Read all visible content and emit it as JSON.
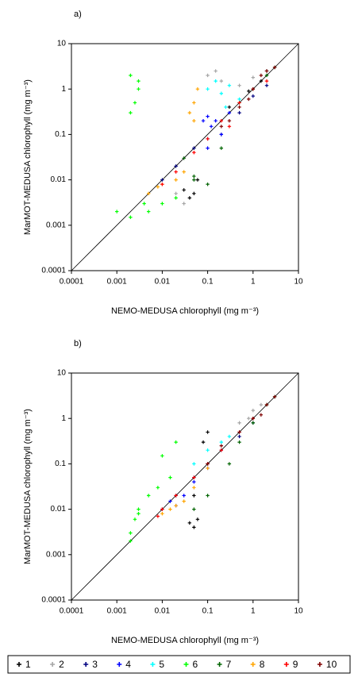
{
  "chart_data": [
    {
      "type": "scatter",
      "panel_label": "a)",
      "xlabel": "NEMO-MEDUSA chlorophyll (mg m⁻³)",
      "ylabel": "MarMOT-MEDUSA chlorophyll (mg m⁻³)",
      "log_scale": true,
      "xlim": [
        0.0001,
        10
      ],
      "ylim": [
        0.0001,
        10
      ],
      "xticks": [
        0.0001,
        0.001,
        0.01,
        0.1,
        1,
        10
      ],
      "yticks": [
        0.0001,
        0.001,
        0.01,
        0.1,
        1,
        10
      ],
      "series": [
        {
          "name": "1",
          "color": "#000000",
          "x": [
            0.03,
            0.04,
            0.05,
            0.06,
            0.3,
            0.8,
            1.5,
            2
          ],
          "values": [
            0.006,
            0.004,
            0.005,
            0.01,
            0.4,
            0.9,
            1.5,
            2.5
          ]
        },
        {
          "name": "2",
          "color": "#a6a6a6",
          "x": [
            0.02,
            0.03,
            0.1,
            0.15,
            0.2,
            0.5,
            1
          ],
          "values": [
            0.005,
            0.003,
            2,
            2.5,
            1.5,
            1.2,
            1.8
          ]
        },
        {
          "name": "3",
          "color": "#000080",
          "x": [
            0.01,
            0.02,
            0.05,
            0.1,
            0.2,
            0.5,
            1,
            2
          ],
          "values": [
            0.01,
            0.02,
            0.05,
            0.08,
            0.1,
            0.3,
            0.7,
            1.2
          ]
        },
        {
          "name": "4",
          "color": "#0000ff",
          "x": [
            0.08,
            0.1,
            0.12,
            0.15,
            0.1,
            0.2,
            0.3
          ],
          "values": [
            0.2,
            0.25,
            0.15,
            0.2,
            0.05,
            0.1,
            0.3
          ]
        },
        {
          "name": "5",
          "color": "#00ffff",
          "x": [
            0.1,
            0.15,
            0.2,
            0.3,
            0.25,
            0.5
          ],
          "values": [
            1,
            1.5,
            0.8,
            1.2,
            0.4,
            0.6
          ]
        },
        {
          "name": "6",
          "color": "#00ff00",
          "x": [
            0.002,
            0.003,
            0.0025,
            0.002,
            0.003,
            0.005,
            0.01,
            0.02,
            0.001,
            0.002,
            0.004
          ],
          "values": [
            2,
            1,
            0.5,
            0.3,
            1.5,
            0.002,
            0.003,
            0.004,
            0.002,
            0.0015,
            0.003
          ]
        },
        {
          "name": "7",
          "color": "#006400",
          "x": [
            0.05,
            0.1,
            0.03,
            0.5,
            1,
            2,
            3,
            0.2,
            0.05
          ],
          "values": [
            0.01,
            0.008,
            0.03,
            0.5,
            1,
            2,
            3,
            0.05,
            0.012
          ]
        },
        {
          "name": "8",
          "color": "#ffa500",
          "x": [
            0.005,
            0.008,
            0.01,
            0.02,
            0.03,
            0.05,
            0.06,
            0.04,
            0.05
          ],
          "values": [
            0.005,
            0.007,
            0.008,
            0.01,
            0.015,
            0.5,
            1,
            0.3,
            0.2
          ]
        },
        {
          "name": "9",
          "color": "#ff0000",
          "x": [
            0.01,
            0.02,
            0.05,
            0.1,
            0.2,
            0.5,
            1,
            2,
            0.3
          ],
          "values": [
            0.008,
            0.015,
            0.04,
            0.08,
            0.2,
            0.5,
            1,
            1.5,
            0.15
          ]
        },
        {
          "name": "10",
          "color": "#800000",
          "x": [
            0.2,
            0.5,
            1,
            1.5,
            2,
            3,
            0.8,
            0.3
          ],
          "values": [
            0.15,
            0.4,
            1,
            2,
            2.5,
            3,
            0.6,
            0.2
          ]
        }
      ]
    },
    {
      "type": "scatter",
      "panel_label": "b)",
      "xlabel": "NEMO-MEDUSA chlorophyll (mg m⁻³)",
      "ylabel": "MarMOT-MEDUSA chlorophyll (mg m⁻³)",
      "log_scale": true,
      "xlim": [
        0.0001,
        10
      ],
      "ylim": [
        0.0001,
        10
      ],
      "xticks": [
        0.0001,
        0.001,
        0.01,
        0.1,
        1,
        10
      ],
      "yticks": [
        0.0001,
        0.001,
        0.01,
        0.1,
        1,
        10
      ],
      "series": [
        {
          "name": "1",
          "color": "#000000",
          "x": [
            0.04,
            0.05,
            0.06,
            0.05,
            0.1,
            0.08
          ],
          "values": [
            0.005,
            0.004,
            0.006,
            0.02,
            0.5,
            0.3
          ]
        },
        {
          "name": "2",
          "color": "#a6a6a6",
          "x": [
            0.5,
            0.8,
            1,
            1.5
          ],
          "values": [
            0.8,
            1,
            1.5,
            2
          ]
        },
        {
          "name": "3",
          "color": "#000080",
          "x": [
            0.01,
            0.02,
            0.05,
            0.1,
            0.2,
            0.5,
            1
          ],
          "values": [
            0.01,
            0.02,
            0.05,
            0.1,
            0.2,
            0.4,
            0.8
          ]
        },
        {
          "name": "4",
          "color": "#0000ff",
          "x": [
            0.015,
            0.02,
            0.03,
            0.05,
            0.1
          ],
          "values": [
            0.015,
            0.012,
            0.02,
            0.04,
            0.08
          ]
        },
        {
          "name": "5",
          "color": "#00ffff",
          "x": [
            0.05,
            0.1,
            0.2,
            0.3
          ],
          "values": [
            0.1,
            0.2,
            0.3,
            0.4
          ]
        },
        {
          "name": "6",
          "color": "#00ff00",
          "x": [
            0.002,
            0.0025,
            0.003,
            0.005,
            0.008,
            0.01,
            0.02,
            0.015,
            0.003,
            0.002
          ],
          "values": [
            0.003,
            0.006,
            0.01,
            0.02,
            0.03,
            0.15,
            0.3,
            0.05,
            0.008,
            0.002
          ]
        },
        {
          "name": "7",
          "color": "#006400",
          "x": [
            0.05,
            0.1,
            0.3,
            0.5,
            1,
            2,
            3
          ],
          "values": [
            0.01,
            0.02,
            0.1,
            0.3,
            0.8,
            2,
            3
          ]
        },
        {
          "name": "8",
          "color": "#ffa500",
          "x": [
            0.01,
            0.015,
            0.02,
            0.03,
            0.05,
            0.1
          ],
          "values": [
            0.008,
            0.01,
            0.012,
            0.015,
            0.03,
            0.08
          ]
        },
        {
          "name": "9",
          "color": "#ff0000",
          "x": [
            0.008,
            0.01,
            0.02,
            0.05,
            0.1,
            0.2,
            0.5,
            1
          ],
          "values": [
            0.007,
            0.01,
            0.02,
            0.05,
            0.1,
            0.2,
            0.5,
            1
          ]
        },
        {
          "name": "10",
          "color": "#800000",
          "x": [
            0.1,
            0.2,
            0.5,
            1,
            2,
            3,
            1.5
          ],
          "values": [
            0.1,
            0.25,
            0.5,
            1,
            2,
            3,
            1.2
          ]
        }
      ]
    }
  ]
}
